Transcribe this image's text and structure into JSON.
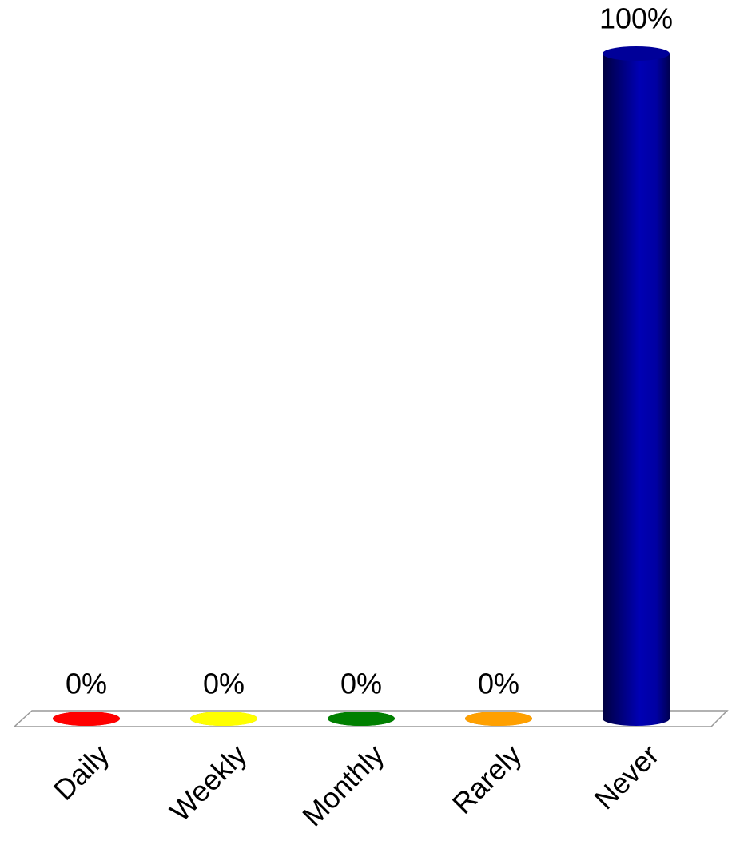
{
  "chart_data": {
    "type": "bar",
    "categories": [
      "Daily",
      "Weekly",
      "Monthly",
      "Rarely",
      "Never"
    ],
    "values": [
      0,
      0,
      0,
      0,
      100
    ],
    "value_labels": [
      "0%",
      "0%",
      "0%",
      "0%",
      "100%"
    ],
    "colors": [
      "#ff0000",
      "#ffff00",
      "#008000",
      "#ffa000",
      "#0000b4"
    ],
    "ylim": [
      0,
      100
    ]
  }
}
